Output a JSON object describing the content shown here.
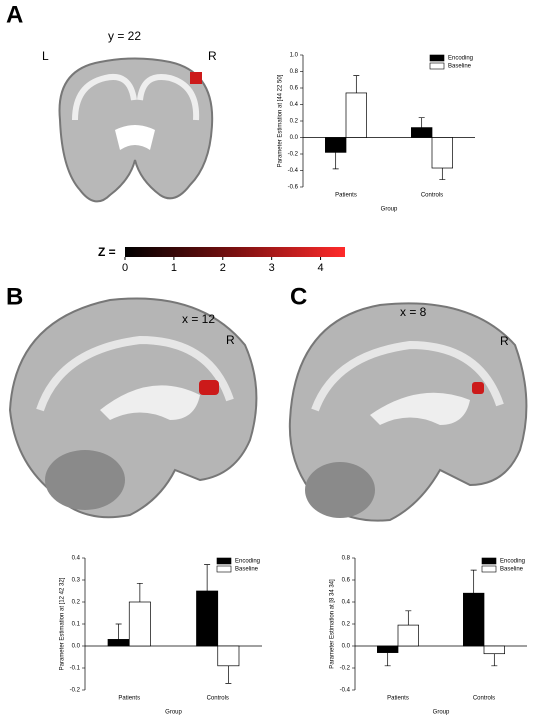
{
  "panels": [
    {
      "label": "A",
      "slice": "y = 22",
      "left": "L",
      "right": "R"
    },
    {
      "label": "B",
      "slice": "x = 12",
      "right": "R"
    },
    {
      "label": "C",
      "slice": "x = 8",
      "right": "R"
    }
  ],
  "colorbar": {
    "label": "Z =",
    "lim": [
      0,
      4.5
    ],
    "ticks": [
      0,
      1,
      2,
      3,
      4
    ]
  },
  "chart_data": [
    {
      "type": "bar",
      "ylabel": "Parameter Estimation at [44 22 50]",
      "xlabel": "Group",
      "categories": [
        "Patients",
        "Controls"
      ],
      "series": [
        {
          "name": "Encoding",
          "color": "#000000",
          "values": [
            -0.18,
            0.12
          ],
          "errors": [
            0.2,
            0.12
          ]
        },
        {
          "name": "Baseline",
          "color": "#ffffff",
          "values": [
            0.54,
            -0.37
          ],
          "errors": [
            0.21,
            0.14
          ]
        }
      ],
      "ylim": [
        -0.6,
        1.0
      ],
      "yticks": [
        -0.6,
        -0.4,
        -0.2,
        {
          "value": 0,
          "label": "0.0"
        },
        0.2,
        0.4,
        0.6,
        0.8,
        {
          "value": 1,
          "label": "1.0"
        }
      ]
    },
    {
      "type": "bar",
      "ylabel": "Parameter Estimation at [12 42 32]",
      "xlabel": "Group",
      "categories": [
        "Patients",
        "Controls"
      ],
      "series": [
        {
          "name": "Encoding",
          "color": "#000000",
          "values": [
            0.03,
            0.25
          ],
          "errors": [
            0.07,
            0.12
          ]
        },
        {
          "name": "Baseline",
          "color": "#ffffff",
          "values": [
            0.2,
            -0.09
          ],
          "errors": [
            0.085,
            0.08
          ]
        }
      ],
      "ylim": [
        -0.2,
        0.4
      ],
      "yticks": [
        -0.2,
        -0.1,
        {
          "value": 0,
          "label": "0.0"
        },
        0.1,
        0.2,
        0.3,
        0.4
      ]
    },
    {
      "type": "bar",
      "ylabel": "Parameter Estimation at [8 34 34]",
      "xlabel": "Group",
      "categories": [
        "Patients",
        "Controls"
      ],
      "series": [
        {
          "name": "Encoding",
          "color": "#000000",
          "values": [
            -0.06,
            0.48
          ],
          "errors": [
            0.12,
            0.21
          ]
        },
        {
          "name": "Baseline",
          "color": "#ffffff",
          "values": [
            0.19,
            -0.07
          ],
          "errors": [
            0.13,
            0.11
          ]
        }
      ],
      "ylim": [
        -0.4,
        0.8
      ],
      "yticks": [
        -0.4,
        -0.2,
        {
          "value": 0,
          "label": "0.0"
        },
        0.2,
        0.4,
        0.6,
        0.8
      ]
    }
  ]
}
